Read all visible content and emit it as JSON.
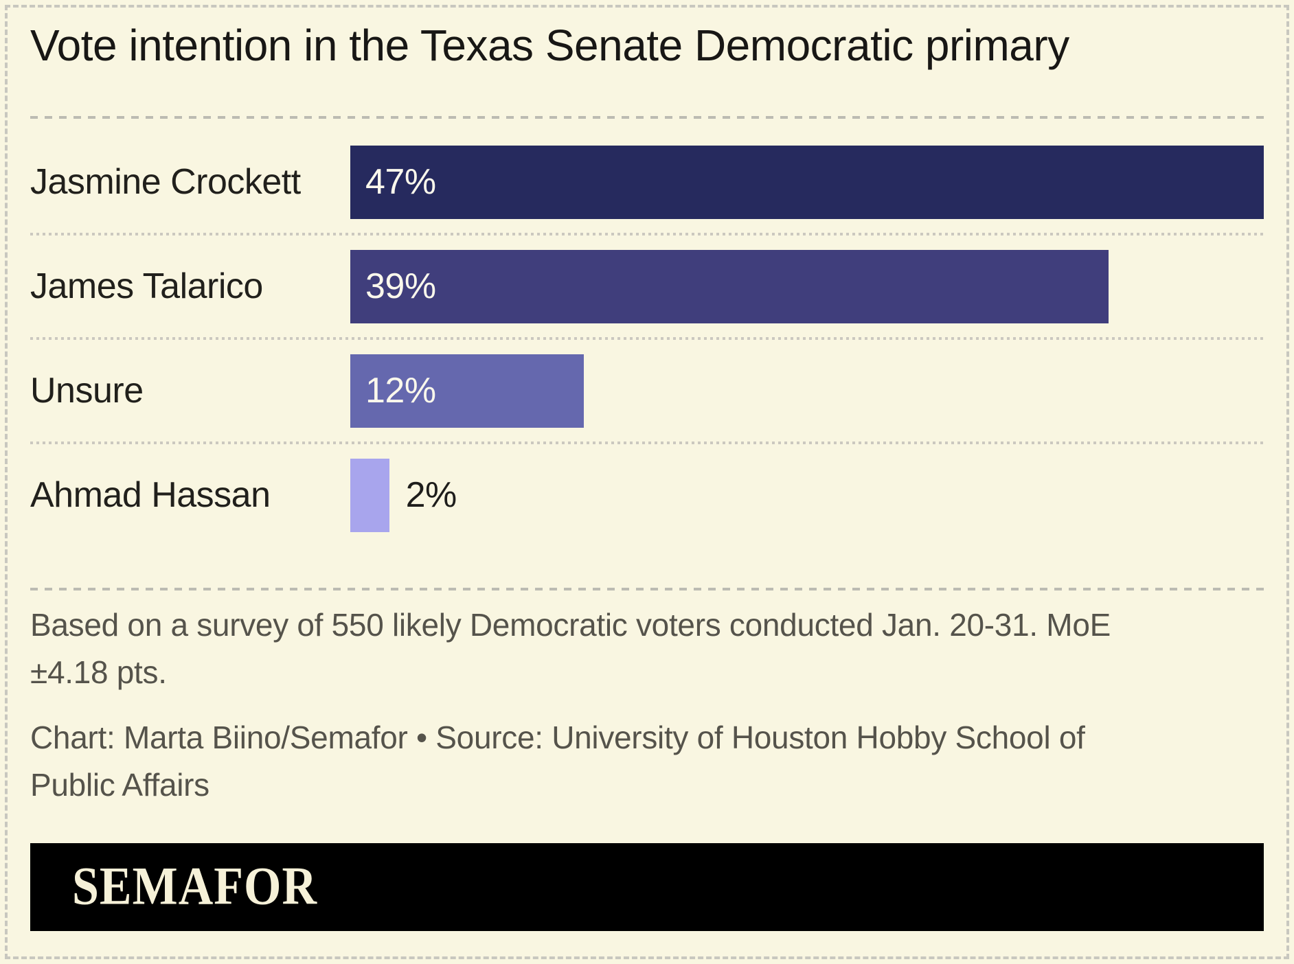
{
  "title": "Vote intention in the Texas Senate Democratic primary",
  "chart_data": {
    "type": "bar",
    "orientation": "horizontal",
    "title": "Vote intention in the Texas Senate Democratic primary",
    "categories": [
      "Jasmine Crockett",
      "James Talarico",
      "Unsure",
      "Ahmad Hassan"
    ],
    "values": [
      47,
      39,
      12,
      2
    ],
    "value_labels": [
      "47%",
      "39%",
      "12%",
      "2%"
    ],
    "unit": "%",
    "xlim": [
      0,
      47
    ],
    "bar_colors": [
      "#262a5e",
      "#403e7c",
      "#6568ae",
      "#a8a5ed"
    ],
    "value_label_color_inside": "#fbf8ec",
    "value_label_color_outside": "#1e1d1b",
    "grid": "off",
    "legend": "none",
    "xlabel": "",
    "ylabel": ""
  },
  "footnote": "Based on a survey of 550 likely Democratic voters conducted Jan. 20-31. MoE ±4.18 pts.",
  "credit": "Chart: Marta Biino/Semafor • Source: University of Houston Hobby School of Public Affairs",
  "footer": {
    "brand": "SEMAFOR",
    "background": "#000000",
    "text_color": "#f6f1d8"
  },
  "colors": {
    "canvas_background": "#f9f6e1",
    "border_dash": "#c8c7bf",
    "separator_dash": "#bcbbb2",
    "separator_dot": "#cbc8bf",
    "title_text": "#181715",
    "label_text": "#21201c",
    "note_text": "#55534b"
  }
}
